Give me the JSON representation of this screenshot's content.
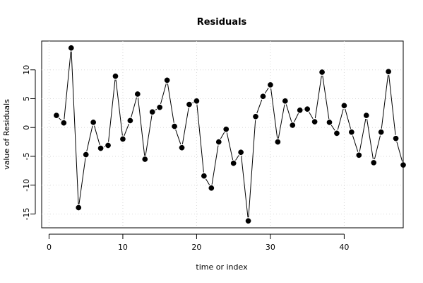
{
  "chart_data": {
    "type": "line",
    "title": "Residuals",
    "xlabel": "time or index",
    "ylabel": "value of Residuals",
    "xlim": [
      0,
      48
    ],
    "ylim": [
      -16.2,
      13.8
    ],
    "grid": true,
    "x_ticks": [
      0,
      10,
      20,
      30,
      40
    ],
    "y_ticks": [
      -15,
      -10,
      -5,
      0,
      5,
      10
    ],
    "x_tick_labels": [
      "0",
      "10",
      "20",
      "30",
      "40"
    ],
    "y_tick_labels": [
      "-15",
      "-10",
      "-5",
      "0",
      "5",
      "10"
    ],
    "series": [
      {
        "x": [
          1,
          2,
          3,
          4,
          5,
          6,
          7,
          8,
          9,
          10,
          11,
          12,
          13,
          14,
          15,
          16,
          17,
          18,
          19,
          20,
          21,
          22,
          23,
          24,
          25,
          26,
          27,
          28,
          29,
          30,
          31,
          32,
          33,
          34,
          35,
          36,
          37,
          38,
          39,
          40,
          41,
          42,
          43,
          44,
          45,
          46,
          47,
          48
        ],
        "values": [
          2.1,
          0.8,
          13.8,
          -13.9,
          -4.7,
          0.9,
          -3.6,
          -3.1,
          8.9,
          -2.0,
          1.2,
          5.8,
          -5.5,
          2.7,
          3.5,
          8.2,
          0.2,
          -3.5,
          4.0,
          4.6,
          -8.4,
          -10.5,
          -2.5,
          -0.3,
          -6.2,
          -4.3,
          -16.2,
          1.9,
          5.4,
          7.4,
          -2.5,
          4.6,
          0.4,
          3.0,
          3.2,
          1.0,
          9.6,
          0.9,
          -1.0,
          3.8,
          -0.8,
          -4.8,
          2.1,
          -6.1,
          -0.8,
          9.7,
          -1.9,
          -6.5
        ],
        "color": "#000000"
      }
    ]
  }
}
